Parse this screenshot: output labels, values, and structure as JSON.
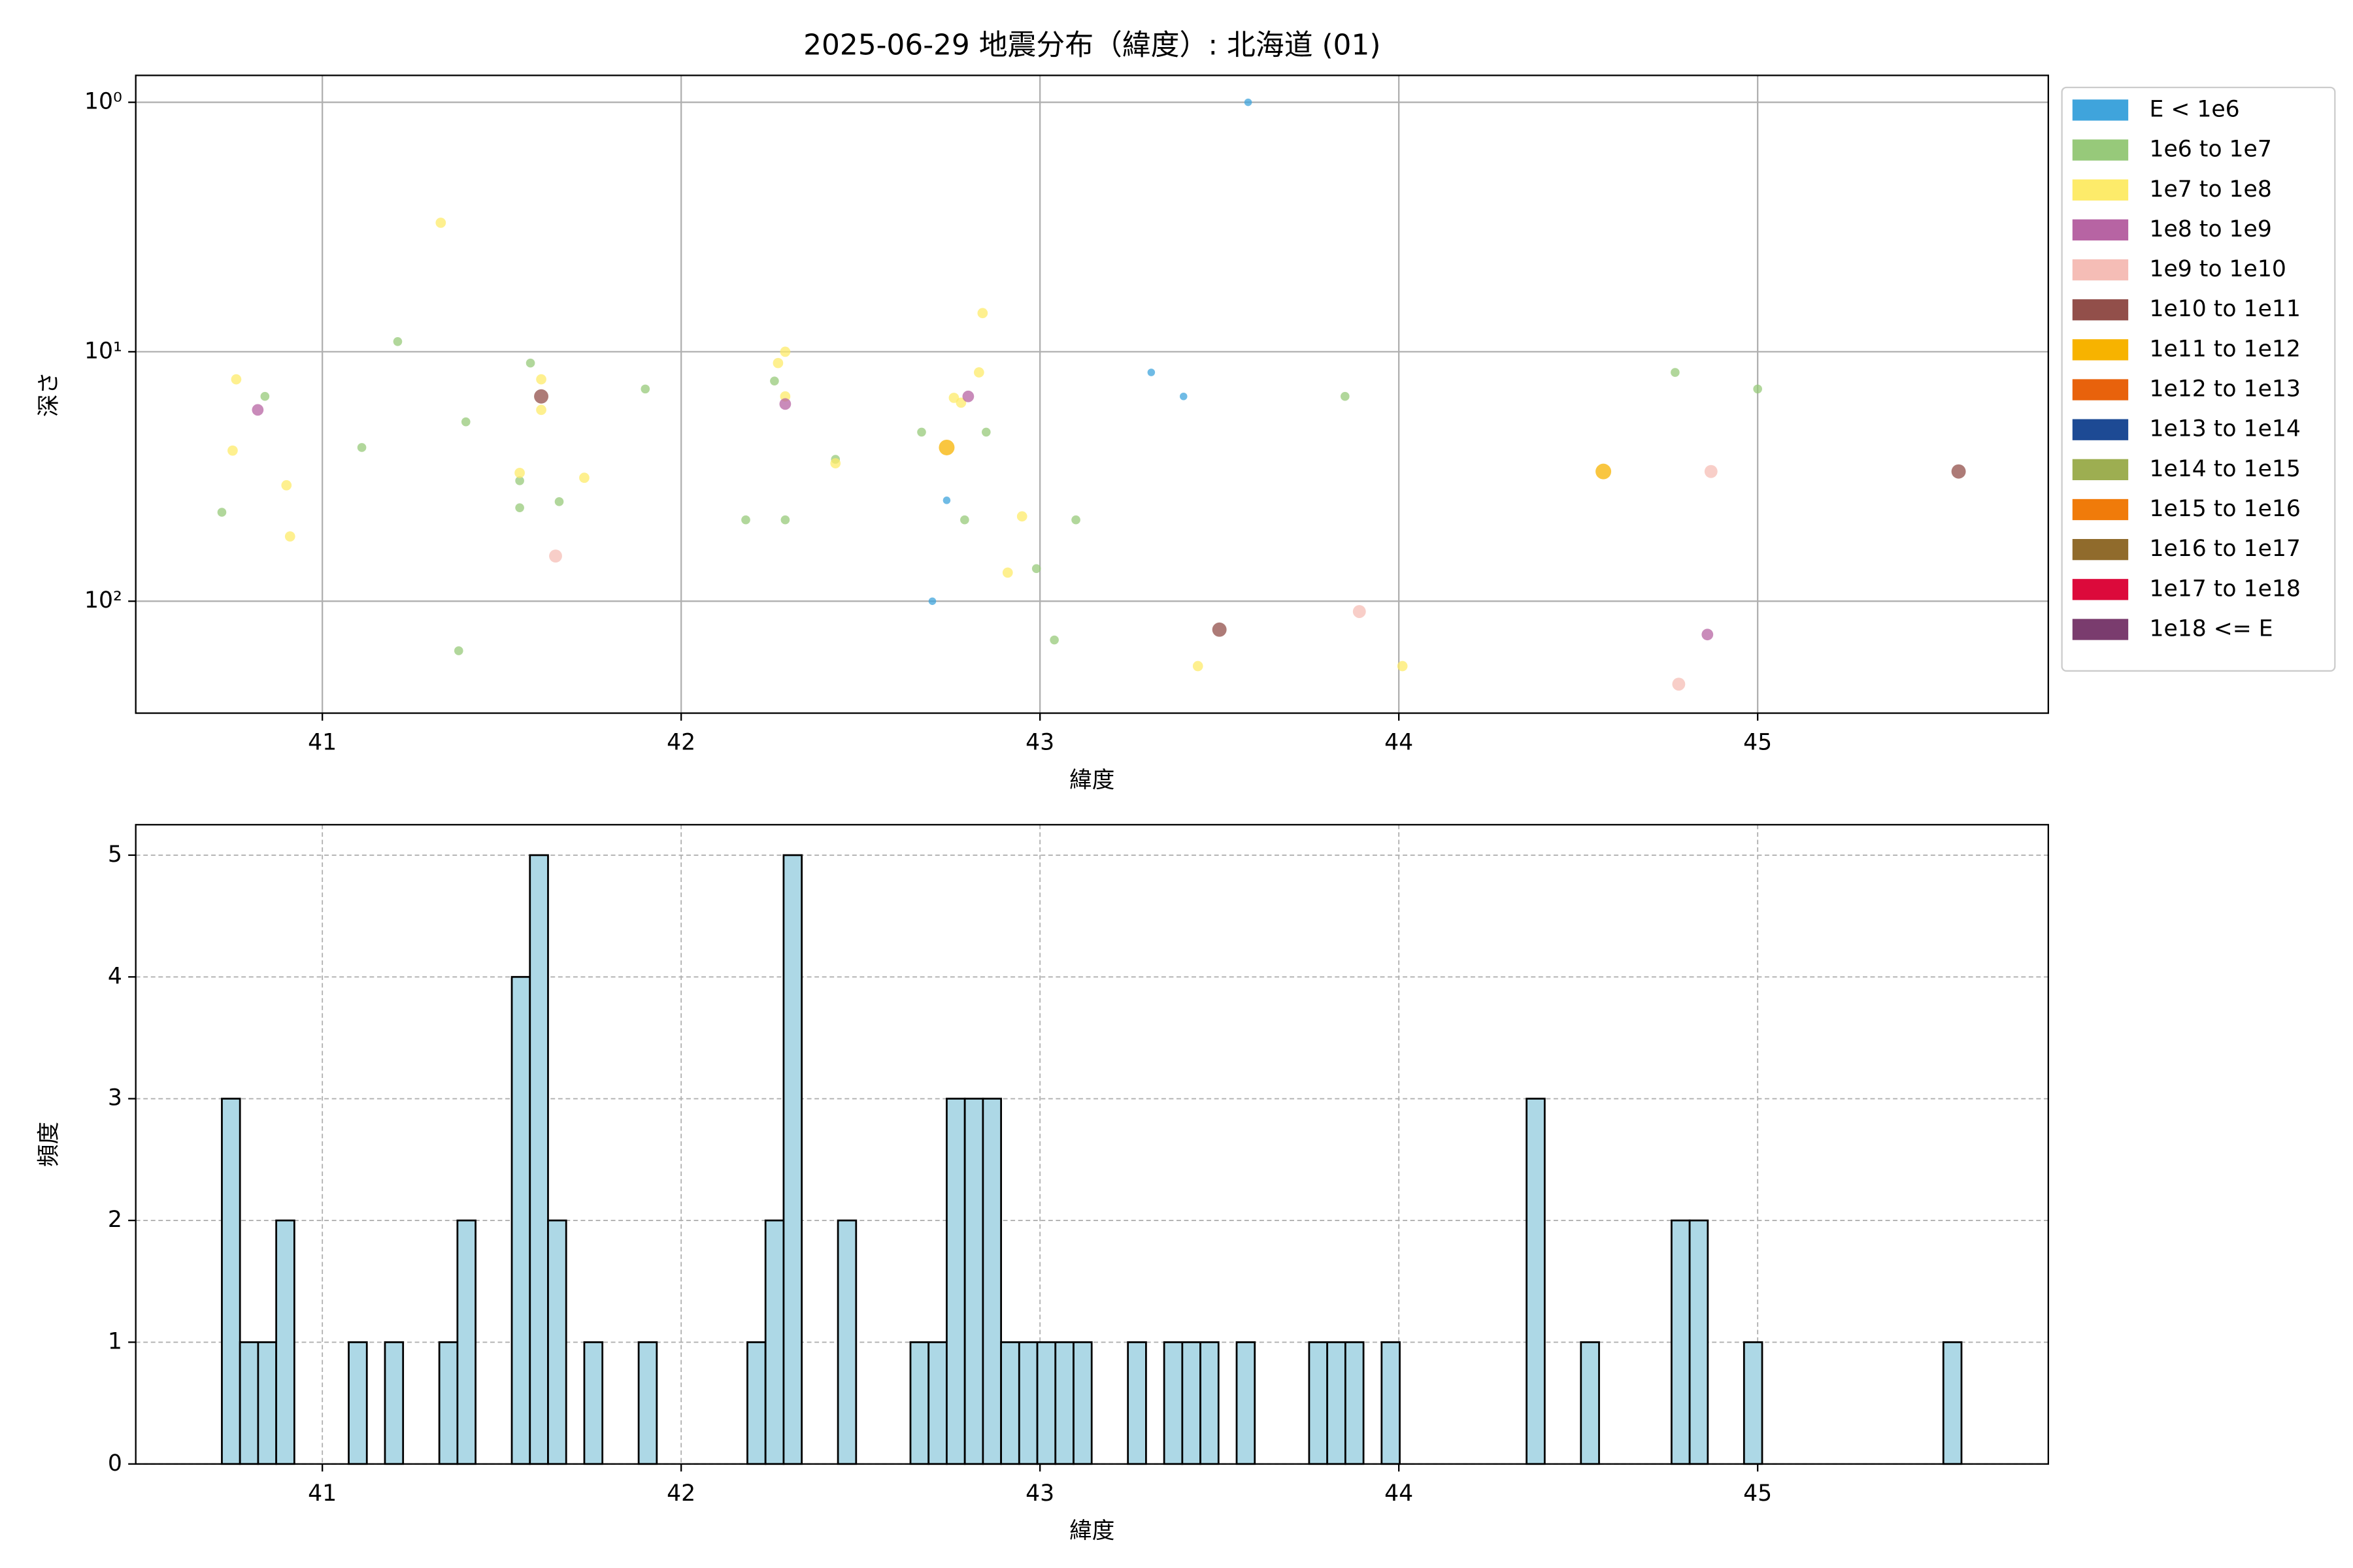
{
  "chart_data": [
    {
      "type": "scatter",
      "title": "2025-06-29 地震分布（緯度）: 北海道 (01)",
      "xlabel": "緯度",
      "ylabel": "深さ",
      "log_y": true,
      "grid": "solid",
      "legend": "outside right",
      "xlim": [
        40.48,
        45.81
      ],
      "ylim": [
        281,
        0.78
      ],
      "xticks": [
        41,
        42,
        43,
        44,
        45
      ],
      "yticks": [
        {
          "value": 1,
          "label": "10⁰"
        },
        {
          "value": 10,
          "label": "10¹"
        },
        {
          "value": 100,
          "label": "10²"
        }
      ],
      "series": [
        {
          "name": "E < 1e6",
          "color": "#3fa4dc",
          "x": [
            43.58,
            42.74,
            42.7,
            43.31,
            43.4
          ],
          "values": [
            1.0,
            39.4,
            100,
            12.1,
            15.1
          ]
        },
        {
          "name": "1e6 to 1e7",
          "color": "#97c97a",
          "x": [
            41.21,
            40.84,
            40.72,
            41.11,
            41.4,
            41.38,
            41.58,
            41.55,
            41.55,
            41.66,
            41.9,
            42.18,
            42.29,
            42.26,
            42.43,
            42.67,
            42.85,
            42.79,
            42.99,
            43.04,
            43.1,
            43.85,
            44.77,
            45.0
          ],
          "values": [
            9.1,
            15.1,
            44,
            24.2,
            19.1,
            158,
            11.1,
            32.9,
            42.2,
            39.9,
            14.1,
            47.2,
            47.2,
            13.1,
            27,
            21,
            21,
            47.2,
            74,
            143,
            47.2,
            15.1,
            12.1,
            14.1
          ]
        },
        {
          "name": "1e7 to 1e8",
          "color": "#fdeb6a",
          "x": [
            41.33,
            40.76,
            40.75,
            40.9,
            40.91,
            41.61,
            41.61,
            41.55,
            41.73,
            42.27,
            42.29,
            42.29,
            42.43,
            42.76,
            42.78,
            42.83,
            42.84,
            42.91,
            42.95,
            43.44,
            44.01
          ],
          "values": [
            3.04,
            12.9,
            24.9,
            34.3,
            55,
            12.9,
            17.1,
            30.6,
            32,
            11.1,
            10,
            15.1,
            28,
            15.3,
            16,
            12.1,
            7.0,
            76.8,
            45.7,
            182,
            182
          ]
        },
        {
          "name": "1e8 to 1e9",
          "color": "#b764a3",
          "x": [
            40.82,
            42.29,
            42.8,
            44.86
          ],
          "values": [
            17.1,
            16.2,
            15.1,
            136
          ]
        },
        {
          "name": "1e9 to 1e10",
          "color": "#f5bdb6",
          "x": [
            41.65,
            43.89,
            44.87,
            44.78
          ],
          "values": [
            65.9,
            110,
            30.2,
            215
          ]
        },
        {
          "name": "1e10 to 1e11",
          "color": "#924f4a",
          "x": [
            41.61,
            43.5,
            45.56
          ],
          "values": [
            15.1,
            130,
            30.2
          ]
        },
        {
          "name": "1e11 to 1e12",
          "color": "#f7b300",
          "x": [
            42.74,
            44.57
          ],
          "values": [
            24.2,
            30.2
          ]
        },
        {
          "name": "1e12 to 1e13",
          "color": "#e8620c",
          "x": [],
          "values": []
        },
        {
          "name": "1e13 to 1e14",
          "color": "#1d4a94",
          "x": [],
          "values": []
        },
        {
          "name": "1e14 to 1e15",
          "color": "#9dae51",
          "x": [],
          "values": []
        },
        {
          "name": "1e15 to 1e16",
          "color": "#f07b0a",
          "x": [],
          "values": []
        },
        {
          "name": "1e16 to 1e17",
          "color": "#906b2c",
          "x": [],
          "values": []
        },
        {
          "name": "1e17 to 1e18",
          "color": "#dc0a3b",
          "x": [],
          "values": []
        },
        {
          "name": "1e18 <= E",
          "color": "#7a3c6e",
          "x": [],
          "values": []
        }
      ]
    },
    {
      "type": "histogram",
      "xlabel": "緯度",
      "ylabel": "頻度",
      "grid": "dashed",
      "color": "#add8e6",
      "edgecolor": "#000000",
      "xlim": [
        40.48,
        45.81
      ],
      "ylim": [
        0,
        5.25
      ],
      "xticks": [
        41,
        42,
        43,
        44,
        45
      ],
      "yticks": [
        0,
        1,
        2,
        3,
        4,
        5
      ],
      "bins": [
        40.72,
        40.7705,
        40.821,
        40.8715,
        40.922,
        40.9725,
        41.023,
        41.0735,
        41.124,
        41.1745,
        41.225,
        41.2755,
        41.326,
        41.3765,
        41.427,
        41.4775,
        41.528,
        41.5785,
        41.629,
        41.6795,
        41.73,
        41.7805,
        41.831,
        41.8815,
        41.932,
        41.9825,
        42.033,
        42.0835,
        42.134,
        42.1845,
        42.235,
        42.2855,
        42.336,
        42.3865,
        42.437,
        42.4875,
        42.538,
        42.5885,
        42.639,
        42.6895,
        42.74,
        42.7905,
        42.841,
        42.8915,
        42.942,
        42.9925,
        43.043,
        43.0935,
        43.144,
        43.1945,
        43.245,
        43.2955,
        43.346,
        43.3965,
        43.447,
        43.4975,
        43.548,
        43.5985,
        43.649,
        43.6995,
        43.75,
        43.8005,
        43.851,
        43.9015,
        43.952,
        44.0025,
        44.053,
        44.1035,
        44.154,
        44.2045,
        44.255,
        44.3055,
        44.356,
        44.4065,
        44.457,
        44.5075,
        44.558,
        44.6085,
        44.659,
        44.7095,
        44.76,
        44.8105,
        44.861,
        44.9115,
        44.962,
        45.0125,
        45.063,
        45.1135,
        45.164,
        45.2145,
        45.265,
        45.3155,
        45.366,
        45.4165,
        45.467,
        45.5175,
        45.568
      ],
      "counts": [
        3,
        1,
        1,
        2,
        0,
        0,
        0,
        1,
        0,
        1,
        0,
        0,
        1,
        2,
        0,
        0,
        4,
        5,
        2,
        0,
        1,
        0,
        0,
        1,
        0,
        0,
        0,
        0,
        0,
        1,
        2,
        5,
        0,
        0,
        2,
        0,
        0,
        0,
        1,
        1,
        3,
        3,
        3,
        1,
        1,
        1,
        1,
        1,
        0,
        0,
        1,
        0,
        1,
        1,
        1,
        0,
        1,
        0,
        0,
        0,
        1,
        1,
        1,
        0,
        1,
        0,
        0,
        0,
        0,
        0,
        0,
        0,
        3,
        0,
        0,
        1,
        0,
        0,
        0,
        0,
        2,
        2,
        0,
        0,
        1,
        0,
        0,
        0,
        0,
        0,
        0,
        0,
        0,
        0,
        0,
        1
      ]
    }
  ]
}
